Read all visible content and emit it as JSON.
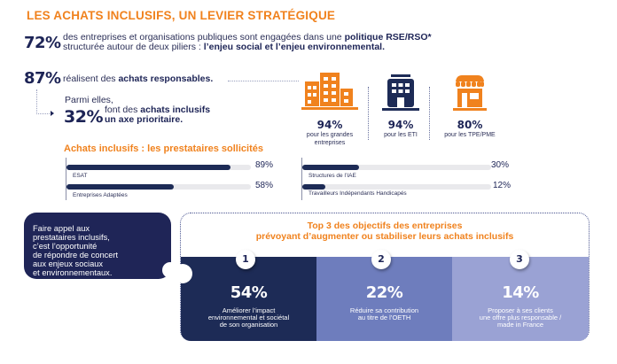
{
  "title": "LES ACHATS INCLUSIFS, UN LEVIER STRATÉGIQUE",
  "stat72": {
    "value": "72%",
    "line1_plain": "des entreprises et organisations publiques sont engagées dans une ",
    "line1_bold": "politique RSE/RSO*",
    "line2_plain": "structurée autour de deux piliers : ",
    "line2_bold": "l’enjeu social et l’enjeu environnemental."
  },
  "stat87": {
    "value": "87%",
    "text_plain": "réalisent des ",
    "text_bold": "achats responsables."
  },
  "stat32": {
    "intro": "Parmi elles,",
    "value": "32%",
    "line1_plain": "font des ",
    "line1_bold": "achats inclusifs",
    "line2_bold": "un axe prioritaire."
  },
  "company_types": [
    {
      "icon": "large-company-building-icon",
      "value": "94%",
      "label": "pour les grandes entreprises",
      "color": "#f0821e"
    },
    {
      "icon": "mid-size-company-building-icon",
      "value": "94%",
      "label": "pour les ETI",
      "color": "#1d2b56"
    },
    {
      "icon": "small-shop-icon",
      "value": "80%",
      "label": "pour les TPE/PME",
      "color": "#f0821e"
    }
  ],
  "providers": {
    "title": "Achats inclusifs : les prestataires sollicités",
    "items": [
      {
        "label": "ESAT",
        "value": 89,
        "display": "89%"
      },
      {
        "label": "Entreprises Adaptées",
        "value": 58,
        "display": "58%"
      },
      {
        "label": "Structures de l’IAE",
        "value": 30,
        "display": "30%"
      },
      {
        "label": "Travailleurs Indépendants Handicapés",
        "value": 12,
        "display": "12%"
      }
    ]
  },
  "callout": {
    "lines": [
      "Faire appel aux",
      "prestataires inclusifs,",
      "c’est l’opportunité",
      "de répondre de concert",
      "aux enjeux sociaux",
      "et environnementaux."
    ]
  },
  "top3": {
    "title_line1": "Top 3 des objectifs des entreprises",
    "title_line2": "prévoyant d’augmenter ou stabiliser leurs achats inclusifs",
    "items": [
      {
        "rank": "1",
        "value": "54%",
        "lines": [
          "Améliorer l’impact",
          "environnemental et sociétal",
          "de son organisation"
        ],
        "color": "#1d2b56"
      },
      {
        "rank": "2",
        "value": "22%",
        "lines": [
          "Réduire sa contribution",
          "au titre de l’OETH"
        ],
        "color": "#6e7dbd"
      },
      {
        "rank": "3",
        "value": "14%",
        "lines": [
          "Proposer à ses clients",
          "une offre plus responsable /",
          "made in France"
        ],
        "color": "#9aa2d4"
      }
    ]
  }
}
